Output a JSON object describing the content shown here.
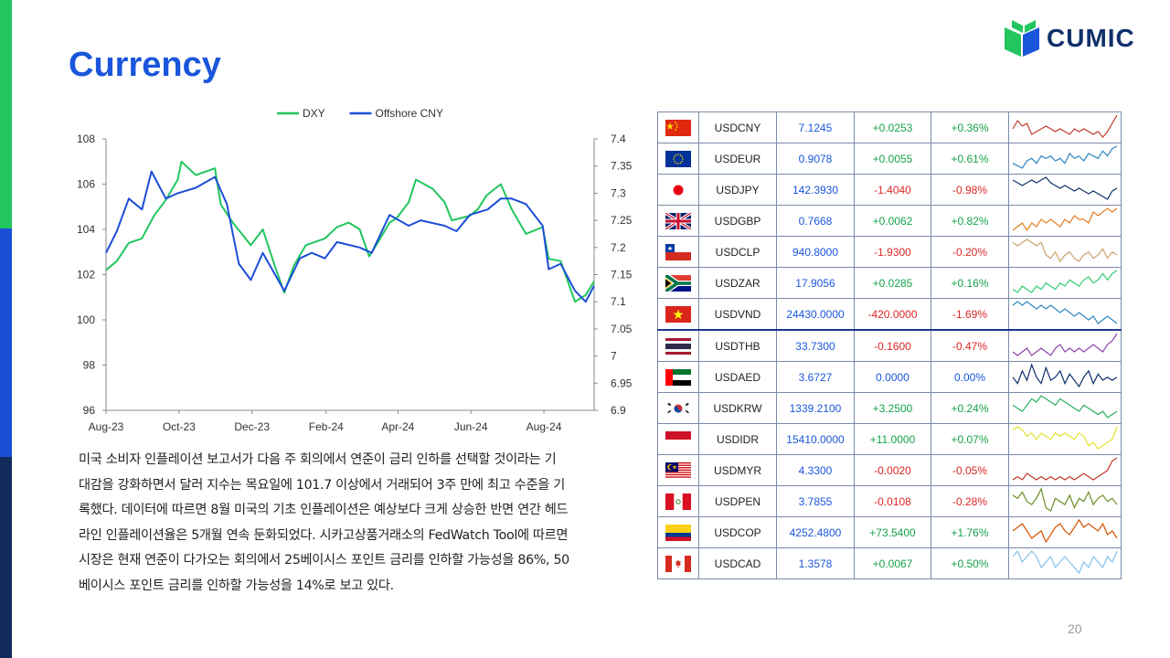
{
  "page": {
    "title": "Currency",
    "page_number": "20",
    "logo_text": "CUMIC"
  },
  "body_lines": [
    "미국 소비자 인플레이션 보고서가 다음 주 회의에서 연준이 금리 인하를 선택할 것이라는 기",
    "대감을 강화하면서 달러 지수는 목요일에 101.7 이상에서 거래되어 3주 만에 최고 수준을 기",
    "록했다. 데이터에 따르면 8월 미국의 기초 인플레이션은 예상보다 크게 상승한 반면 연간 헤드",
    "라인 인플레이션율은 5개월 연속 둔화되었다. 시카고상품거래소의 FedWatch Tool에 따르면",
    "시장은 현재 연준이 다가오는 회의에서 25베이시스 포인트 금리를 인하할 가능성을 86%, 50",
    "베이시스 포인트 금리를 인하할 가능성을 14%로 보고 있다."
  ],
  "chart_data": {
    "type": "line",
    "legend_position": "top",
    "x_ticks": [
      "Aug-23",
      "Oct-23",
      "Dec-23",
      "Feb-24",
      "Apr-24",
      "Jun-24",
      "Aug-24"
    ],
    "y_left": {
      "range": [
        96,
        108
      ],
      "ticks": [
        "96",
        "98",
        "100",
        "102",
        "104",
        "106",
        "108"
      ]
    },
    "y_right": {
      "range": [
        6.9,
        7.4
      ],
      "ticks": [
        "6.9",
        "6.95",
        "7",
        "7.05",
        "7.1",
        "7.15",
        "7.2",
        "7.25",
        "7.3",
        "7.35",
        "7.4"
      ]
    },
    "x_range": [
      "2023-08-01",
      "2024-09-12"
    ],
    "series": [
      {
        "name": "DXY",
        "axis": "left",
        "color": "#22c55e",
        "points": [
          [
            "2023-08-01",
            102.2
          ],
          [
            "2023-08-10",
            102.6
          ],
          [
            "2023-08-20",
            103.4
          ],
          [
            "2023-08-31",
            103.6
          ],
          [
            "2023-09-10",
            104.6
          ],
          [
            "2023-09-20",
            105.3
          ],
          [
            "2023-09-30",
            106.2
          ],
          [
            "2023-10-03",
            107.0
          ],
          [
            "2023-10-15",
            106.4
          ],
          [
            "2023-10-31",
            106.7
          ],
          [
            "2023-11-05",
            105.1
          ],
          [
            "2023-11-15",
            104.3
          ],
          [
            "2023-11-30",
            103.3
          ],
          [
            "2023-12-10",
            104.0
          ],
          [
            "2023-12-20",
            102.4
          ],
          [
            "2023-12-28",
            101.2
          ],
          [
            "2024-01-05",
            102.4
          ],
          [
            "2024-01-15",
            103.3
          ],
          [
            "2024-01-31",
            103.6
          ],
          [
            "2024-02-10",
            104.1
          ],
          [
            "2024-02-20",
            104.3
          ],
          [
            "2024-02-29",
            104.0
          ],
          [
            "2024-03-08",
            102.8
          ],
          [
            "2024-03-15",
            103.4
          ],
          [
            "2024-03-25",
            104.3
          ],
          [
            "2024-03-31",
            104.5
          ],
          [
            "2024-04-10",
            105.2
          ],
          [
            "2024-04-16",
            106.2
          ],
          [
            "2024-04-30",
            105.8
          ],
          [
            "2024-05-10",
            105.2
          ],
          [
            "2024-05-16",
            104.4
          ],
          [
            "2024-05-31",
            104.6
          ],
          [
            "2024-06-07",
            104.9
          ],
          [
            "2024-06-14",
            105.5
          ],
          [
            "2024-06-26",
            106.0
          ],
          [
            "2024-07-05",
            104.9
          ],
          [
            "2024-07-17",
            103.8
          ],
          [
            "2024-07-31",
            104.1
          ],
          [
            "2024-08-05",
            102.7
          ],
          [
            "2024-08-15",
            102.6
          ],
          [
            "2024-08-27",
            100.8
          ],
          [
            "2024-09-05",
            101.1
          ],
          [
            "2024-09-12",
            101.7
          ]
        ]
      },
      {
        "name": "Offshore CNY",
        "axis": "right",
        "color": "#1d4ed8",
        "points": [
          [
            "2023-08-01",
            7.19
          ],
          [
            "2023-08-10",
            7.23
          ],
          [
            "2023-08-20",
            7.29
          ],
          [
            "2023-08-31",
            7.27
          ],
          [
            "2023-09-08",
            7.34
          ],
          [
            "2023-09-20",
            7.29
          ],
          [
            "2023-09-30",
            7.3
          ],
          [
            "2023-10-15",
            7.31
          ],
          [
            "2023-10-31",
            7.33
          ],
          [
            "2023-11-10",
            7.28
          ],
          [
            "2023-11-20",
            7.17
          ],
          [
            "2023-11-30",
            7.14
          ],
          [
            "2023-12-10",
            7.19
          ],
          [
            "2023-12-28",
            7.12
          ],
          [
            "2024-01-10",
            7.18
          ],
          [
            "2024-01-20",
            7.19
          ],
          [
            "2024-01-31",
            7.18
          ],
          [
            "2024-02-10",
            7.21
          ],
          [
            "2024-02-29",
            7.2
          ],
          [
            "2024-03-10",
            7.19
          ],
          [
            "2024-03-25",
            7.26
          ],
          [
            "2024-04-10",
            7.24
          ],
          [
            "2024-04-20",
            7.25
          ],
          [
            "2024-05-10",
            7.24
          ],
          [
            "2024-05-20",
            7.23
          ],
          [
            "2024-05-31",
            7.26
          ],
          [
            "2024-06-15",
            7.27
          ],
          [
            "2024-06-26",
            7.29
          ],
          [
            "2024-07-05",
            7.29
          ],
          [
            "2024-07-17",
            7.28
          ],
          [
            "2024-07-31",
            7.24
          ],
          [
            "2024-08-05",
            7.16
          ],
          [
            "2024-08-15",
            7.17
          ],
          [
            "2024-08-27",
            7.12
          ],
          [
            "2024-09-05",
            7.1
          ],
          [
            "2024-09-12",
            7.13
          ]
        ]
      }
    ]
  },
  "rates": [
    {
      "pair": "USDCNY",
      "price": "7.1245",
      "change": "+0.0253",
      "pct": "+0.36%",
      "change_sign": "pos",
      "pct_sign": "pos",
      "flag": "china-flag-icon",
      "spark_color": "#c0392b",
      "spark": [
        5,
        8,
        6,
        7,
        3,
        4,
        5,
        6,
        5,
        4,
        5,
        4,
        3,
        5,
        4,
        5,
        4,
        3,
        4,
        2,
        4,
        7,
        10
      ]
    },
    {
      "pair": "USDEUR",
      "price": "0.9078",
      "change": "+0.0055",
      "pct": "+0.61%",
      "change_sign": "pos",
      "pct_sign": "pos",
      "flag": "eu-flag-icon",
      "spark_color": "#2e86c1",
      "spark": [
        4,
        3,
        2,
        5,
        6,
        4,
        7,
        6,
        7,
        5,
        6,
        4,
        8,
        6,
        7,
        5,
        8,
        7,
        6,
        9,
        7,
        10,
        11
      ]
    },
    {
      "pair": "USDJPY",
      "price": "142.3930",
      "change": "-1.4040",
      "pct": "-0.98%",
      "change_sign": "neg",
      "pct_sign": "neg",
      "flag": "japan-flag-icon",
      "spark_color": "#10306b",
      "spark": [
        9,
        8,
        7,
        8,
        9,
        8,
        9,
        10,
        8,
        7,
        6,
        7,
        6,
        5,
        6,
        5,
        4,
        5,
        4,
        3,
        2,
        5,
        6
      ]
    },
    {
      "pair": "USDGBP",
      "price": "0.7668",
      "change": "+0.0062",
      "pct": "+0.82%",
      "change_sign": "pos",
      "pct_sign": "pos",
      "flag": "uk-flag-icon",
      "spark_color": "#e67e22",
      "spark": [
        3,
        4,
        5,
        3,
        5,
        4,
        6,
        5,
        6,
        5,
        4,
        6,
        5,
        7,
        6,
        6,
        5,
        8,
        7,
        8,
        9,
        8,
        9
      ]
    },
    {
      "pair": "USDCLP",
      "price": "940.8000",
      "change": "-1.9300",
      "pct": "-0.20%",
      "change_sign": "neg",
      "pct_sign": "neg",
      "flag": "chile-flag-icon",
      "spark_color": "#c9a26b",
      "spark": [
        9,
        8,
        9,
        10,
        9,
        8,
        9,
        5,
        4,
        6,
        3,
        5,
        6,
        4,
        3,
        5,
        6,
        4,
        5,
        7,
        4,
        6,
        5
      ]
    },
    {
      "pair": "USDZAR",
      "price": "17.9056",
      "change": "+0.0285",
      "pct": "+0.16%",
      "change_sign": "pos",
      "pct_sign": "pos",
      "flag": "south-africa-flag-icon",
      "spark_color": "#2ecc71",
      "spark": [
        3,
        2,
        4,
        3,
        2,
        4,
        3,
        5,
        4,
        3,
        5,
        4,
        6,
        5,
        4,
        6,
        7,
        5,
        6,
        8,
        6,
        8,
        9
      ]
    },
    {
      "pair": "USDVND",
      "price": "24430.0000",
      "change": "-420.0000",
      "pct": "-1.69%",
      "change_sign": "neg",
      "pct_sign": "neg",
      "flag": "vietnam-flag-icon",
      "spark_color": "#2e86c1",
      "spark": [
        7,
        8,
        7,
        8,
        7,
        6,
        7,
        6,
        7,
        6,
        5,
        6,
        5,
        4,
        5,
        4,
        3,
        4,
        2,
        3,
        4,
        3,
        2
      ]
    },
    {
      "pair": "USDTHB",
      "price": "33.7300",
      "change": "-0.1600",
      "pct": "-0.47%",
      "change_sign": "neg",
      "pct_sign": "neg",
      "flag": "thailand-flag-icon",
      "spark_color": "#8e44ad",
      "spark": [
        5,
        4,
        5,
        6,
        4,
        5,
        6,
        5,
        4,
        6,
        7,
        5,
        6,
        5,
        6,
        5,
        6,
        7,
        6,
        5,
        7,
        8,
        10
      ]
    },
    {
      "pair": "USDAED",
      "price": "3.6727",
      "change": "0.0000",
      "pct": "0.00%",
      "change_sign": "zero",
      "pct_sign": "zero",
      "flag": "uae-flag-icon",
      "spark_color": "#10306b",
      "spark": [
        5,
        3,
        7,
        4,
        9,
        5,
        3,
        8,
        4,
        5,
        7,
        3,
        6,
        4,
        2,
        5,
        7,
        3,
        6,
        4,
        5,
        4,
        5
      ]
    },
    {
      "pair": "USDKRW",
      "price": "1339.2100",
      "change": "+3.2500",
      "pct": "+0.24%",
      "change_sign": "pos",
      "pct_sign": "pos",
      "flag": "korea-flag-icon",
      "spark_color": "#27ae60",
      "spark": [
        6,
        5,
        4,
        6,
        8,
        7,
        9,
        8,
        7,
        6,
        8,
        7,
        6,
        5,
        4,
        6,
        5,
        4,
        3,
        4,
        2,
        3,
        4
      ]
    },
    {
      "pair": "USDIDR",
      "price": "15410.0000",
      "change": "+11.0000",
      "pct": "+0.07%",
      "change_sign": "pos",
      "pct_sign": "pos",
      "flag": "indonesia-flag-icon",
      "spark_color": "#e2e22a",
      "spark": [
        8,
        9,
        8,
        6,
        7,
        5,
        7,
        6,
        5,
        7,
        6,
        7,
        6,
        5,
        7,
        6,
        3,
        4,
        2,
        3,
        4,
        5,
        9
      ]
    },
    {
      "pair": "USDMYR",
      "price": "4.3300",
      "change": "-0.0020",
      "pct": "-0.05%",
      "change_sign": "neg",
      "pct_sign": "neg",
      "flag": "malaysia-flag-icon",
      "spark_color": "#c0392b",
      "spark": [
        3,
        4,
        3,
        5,
        4,
        3,
        4,
        3,
        4,
        3,
        4,
        3,
        4,
        3,
        4,
        5,
        4,
        3,
        4,
        5,
        6,
        9,
        10
      ]
    },
    {
      "pair": "USDPEN",
      "price": "3.7855",
      "change": "-0.0108",
      "pct": "-0.28%",
      "change_sign": "neg",
      "pct_sign": "neg",
      "flag": "peru-flag-icon",
      "spark_color": "#6b8e23",
      "spark": [
        7,
        6,
        8,
        5,
        4,
        6,
        9,
        3,
        2,
        6,
        5,
        4,
        7,
        3,
        6,
        5,
        8,
        4,
        6,
        7,
        5,
        6,
        4
      ]
    },
    {
      "pair": "USDCOP",
      "price": "4252.4800",
      "change": "+73.5400",
      "pct": "+1.76%",
      "change_sign": "pos",
      "pct_sign": "pos",
      "flag": "colombia-flag-icon",
      "spark_color": "#d35400",
      "spark": [
        6,
        7,
        8,
        6,
        4,
        5,
        6,
        3,
        5,
        7,
        8,
        6,
        5,
        7,
        9,
        7,
        8,
        7,
        6,
        8,
        5,
        6,
        4
      ]
    },
    {
      "pair": "USDCAD",
      "price": "1.3578",
      "change": "+0.0067",
      "pct": "+0.50%",
      "change_sign": "pos",
      "pct_sign": "pos",
      "flag": "canada-flag-icon",
      "spark_color": "#85c1e9",
      "spark": [
        5,
        6,
        4,
        5,
        6,
        5,
        3,
        4,
        5,
        3,
        4,
        5,
        4,
        3,
        2,
        4,
        3,
        5,
        4,
        3,
        5,
        4,
        6
      ]
    }
  ]
}
